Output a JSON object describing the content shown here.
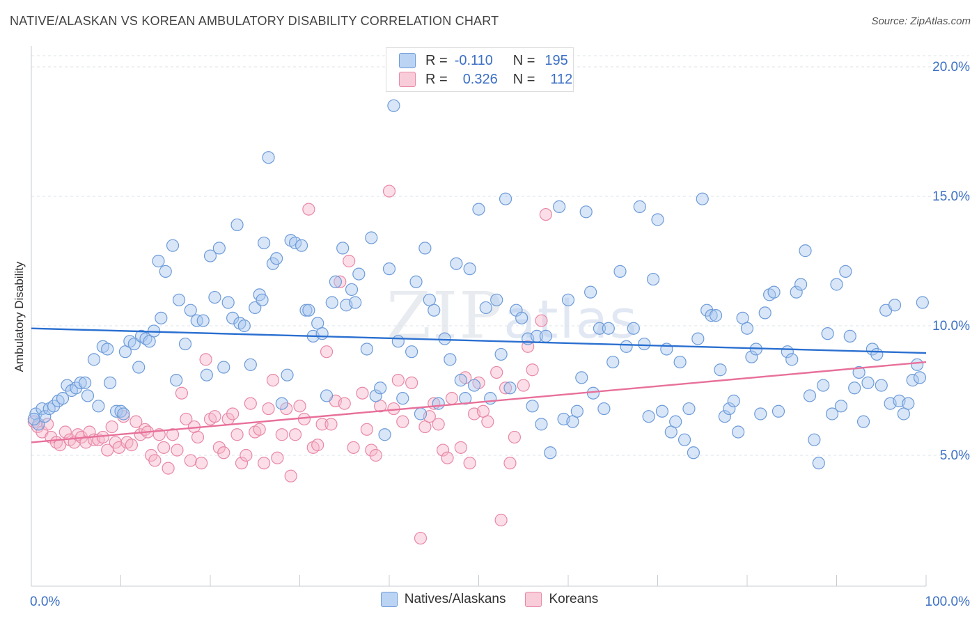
{
  "header": {
    "title": "NATIVE/ALASKAN VS KOREAN AMBULATORY DISABILITY CORRELATION CHART",
    "source": "Source: ZipAtlas.com"
  },
  "watermark": {
    "bold": "ZIP",
    "light": "atlas"
  },
  "legend_top": {
    "rows": [
      {
        "r_label": "R =",
        "r_value": "-0.110",
        "n_label": "N =",
        "n_value": "195"
      },
      {
        "r_label": "R =",
        "r_value": "0.326",
        "n_label": "N =",
        "n_value": "112"
      }
    ]
  },
  "legend_bottom": {
    "items": [
      "Natives/Alaskans",
      "Koreans"
    ]
  },
  "colors": {
    "blue_fill": "#a9c8f0",
    "blue_stroke": "#6d9bd8",
    "blue_line": "#2a6fd0",
    "pink_fill": "#f6b6c9",
    "pink_stroke": "#e888a6",
    "pink_line": "#e8709a",
    "tick_label": "#3b6fc4",
    "grid": "#dde3ea"
  },
  "chart_data": {
    "type": "scatter",
    "title": "NATIVE/ALASKAN VS KOREAN AMBULATORY DISABILITY CORRELATION CHART",
    "xlabel": "",
    "ylabel": "Ambulatory Disability",
    "xlim": [
      0,
      100
    ],
    "ylim": [
      0,
      20.5
    ],
    "x_tick_labels": [
      "0.0%",
      "100.0%"
    ],
    "y_ticks": [
      5,
      10,
      15,
      20
    ],
    "y_tick_labels": [
      "5.0%",
      "10.0%",
      "15.0%",
      "20.0%"
    ],
    "grid": true,
    "legend_position": "top-center",
    "series": [
      {
        "name": "Natives/Alaskans",
        "r": -0.11,
        "n": 195,
        "trend": {
          "x": [
            0,
            100
          ],
          "y": [
            9.9,
            8.95
          ]
        },
        "points": [
          [
            0.5,
            6.6
          ],
          [
            0.8,
            6.2
          ],
          [
            1.2,
            6.8
          ],
          [
            1.5,
            6.5
          ],
          [
            2.0,
            6.8
          ],
          [
            2.5,
            6.9
          ],
          [
            3.0,
            7.1
          ],
          [
            3.5,
            7.2
          ],
          [
            4.0,
            7.7
          ],
          [
            4.5,
            7.5
          ],
          [
            5.0,
            7.6
          ],
          [
            5.5,
            7.8
          ],
          [
            6.0,
            7.8
          ],
          [
            6.3,
            7.3
          ],
          [
            7.0,
            8.7
          ],
          [
            7.5,
            6.9
          ],
          [
            8.0,
            9.2
          ],
          [
            8.5,
            9.1
          ],
          [
            8.8,
            7.8
          ],
          [
            9.5,
            6.7
          ],
          [
            10.0,
            6.7
          ],
          [
            10.3,
            6.6
          ],
          [
            10.5,
            9.0
          ],
          [
            11.0,
            9.4
          ],
          [
            11.5,
            9.3
          ],
          [
            12.0,
            8.4
          ],
          [
            12.3,
            9.6
          ],
          [
            12.8,
            9.5
          ],
          [
            13.2,
            9.4
          ],
          [
            13.7,
            9.8
          ],
          [
            14.2,
            12.5
          ],
          [
            14.5,
            10.3
          ],
          [
            15.0,
            12.1
          ],
          [
            15.8,
            13.1
          ],
          [
            16.2,
            7.9
          ],
          [
            16.5,
            11.0
          ],
          [
            17.2,
            9.3
          ],
          [
            17.8,
            10.6
          ],
          [
            18.5,
            10.2
          ],
          [
            19.2,
            10.2
          ],
          [
            19.6,
            8.1
          ],
          [
            20.0,
            12.7
          ],
          [
            20.5,
            11.1
          ],
          [
            21.0,
            13.0
          ],
          [
            21.5,
            8.4
          ],
          [
            22.0,
            10.9
          ],
          [
            22.5,
            10.3
          ],
          [
            23.0,
            13.9
          ],
          [
            23.3,
            10.1
          ],
          [
            23.8,
            10.0
          ],
          [
            24.5,
            8.5
          ],
          [
            25.0,
            10.7
          ],
          [
            25.5,
            11.2
          ],
          [
            25.8,
            11.0
          ],
          [
            26.0,
            13.2
          ],
          [
            26.5,
            16.5
          ],
          [
            27.0,
            12.4
          ],
          [
            27.4,
            12.6
          ],
          [
            28.0,
            7.0
          ],
          [
            28.6,
            8.1
          ],
          [
            29.0,
            13.3
          ],
          [
            29.5,
            13.2
          ],
          [
            30.2,
            13.1
          ],
          [
            30.7,
            10.6
          ],
          [
            31.0,
            10.6
          ],
          [
            31.5,
            9.6
          ],
          [
            32.0,
            10.1
          ],
          [
            32.5,
            9.7
          ],
          [
            33.0,
            7.3
          ],
          [
            33.6,
            10.9
          ],
          [
            34.0,
            11.7
          ],
          [
            34.8,
            13.0
          ],
          [
            35.2,
            10.8
          ],
          [
            35.8,
            11.4
          ],
          [
            36.2,
            10.9
          ],
          [
            36.6,
            12.0
          ],
          [
            37.5,
            9.1
          ],
          [
            38.0,
            13.4
          ],
          [
            38.5,
            7.3
          ],
          [
            39.0,
            7.6
          ],
          [
            39.5,
            5.8
          ],
          [
            40.0,
            12.2
          ],
          [
            40.5,
            18.5
          ],
          [
            41.0,
            9.4
          ],
          [
            41.5,
            7.2
          ],
          [
            42.5,
            9.0
          ],
          [
            43.0,
            11.7
          ],
          [
            43.5,
            6.6
          ],
          [
            44.0,
            13.0
          ],
          [
            44.5,
            11.0
          ],
          [
            45.0,
            10.6
          ],
          [
            45.5,
            7.0
          ],
          [
            46.2,
            9.5
          ],
          [
            46.8,
            8.7
          ],
          [
            47.5,
            12.4
          ],
          [
            48.0,
            7.9
          ],
          [
            48.5,
            7.2
          ],
          [
            49.0,
            12.2
          ],
          [
            49.5,
            7.7
          ],
          [
            50.0,
            14.5
          ],
          [
            50.8,
            10.7
          ],
          [
            51.3,
            7.2
          ],
          [
            52.0,
            11.0
          ],
          [
            52.5,
            8.9
          ],
          [
            53.0,
            14.9
          ],
          [
            53.5,
            7.6
          ],
          [
            54.2,
            10.6
          ],
          [
            54.8,
            10.3
          ],
          [
            55.5,
            9.5
          ],
          [
            56.0,
            6.9
          ],
          [
            56.5,
            9.6
          ],
          [
            57.0,
            6.2
          ],
          [
            57.5,
            9.6
          ],
          [
            58.0,
            5.1
          ],
          [
            59.0,
            14.6
          ],
          [
            59.5,
            6.4
          ],
          [
            60.0,
            11.0
          ],
          [
            60.5,
            6.3
          ],
          [
            61.0,
            6.7
          ],
          [
            61.5,
            8.0
          ],
          [
            62.0,
            14.4
          ],
          [
            62.5,
            11.3
          ],
          [
            62.8,
            7.4
          ],
          [
            63.5,
            9.9
          ],
          [
            64.0,
            6.8
          ],
          [
            64.5,
            9.9
          ],
          [
            65.0,
            8.6
          ],
          [
            65.8,
            12.1
          ],
          [
            66.5,
            9.2
          ],
          [
            67.3,
            9.9
          ],
          [
            68.0,
            14.6
          ],
          [
            68.5,
            9.3
          ],
          [
            69.0,
            6.5
          ],
          [
            69.5,
            11.8
          ],
          [
            70.0,
            14.1
          ],
          [
            70.5,
            6.7
          ],
          [
            71.0,
            9.1
          ],
          [
            71.5,
            5.9
          ],
          [
            72.0,
            6.3
          ],
          [
            72.5,
            8.6
          ],
          [
            73.0,
            5.6
          ],
          [
            73.5,
            6.8
          ],
          [
            74.0,
            5.1
          ],
          [
            74.5,
            9.5
          ],
          [
            75.0,
            14.9
          ],
          [
            75.5,
            10.6
          ],
          [
            76.0,
            10.4
          ],
          [
            76.5,
            10.4
          ],
          [
            77.0,
            8.3
          ],
          [
            77.5,
            6.5
          ],
          [
            78.0,
            6.8
          ],
          [
            78.5,
            7.1
          ],
          [
            79.0,
            5.9
          ],
          [
            79.5,
            10.3
          ],
          [
            80.0,
            9.9
          ],
          [
            80.5,
            8.8
          ],
          [
            81.0,
            9.1
          ],
          [
            81.5,
            6.6
          ],
          [
            82.0,
            10.5
          ],
          [
            82.5,
            11.2
          ],
          [
            83.0,
            11.3
          ],
          [
            83.5,
            6.7
          ],
          [
            84.5,
            9.0
          ],
          [
            85.0,
            8.7
          ],
          [
            85.5,
            11.3
          ],
          [
            86.0,
            11.6
          ],
          [
            86.5,
            12.9
          ],
          [
            87.0,
            7.3
          ],
          [
            87.5,
            5.6
          ],
          [
            88.0,
            4.7
          ],
          [
            88.5,
            7.7
          ],
          [
            89.0,
            9.7
          ],
          [
            89.5,
            6.6
          ],
          [
            90.0,
            11.6
          ],
          [
            90.5,
            6.9
          ],
          [
            91.0,
            12.1
          ],
          [
            91.5,
            9.6
          ],
          [
            92.0,
            7.6
          ],
          [
            92.5,
            8.2
          ],
          [
            93.0,
            6.3
          ],
          [
            93.5,
            7.8
          ],
          [
            94.0,
            9.1
          ],
          [
            94.5,
            8.9
          ],
          [
            95.0,
            7.7
          ],
          [
            95.5,
            10.6
          ],
          [
            96.0,
            7.0
          ],
          [
            96.5,
            10.8
          ],
          [
            97.0,
            7.1
          ],
          [
            97.5,
            6.6
          ],
          [
            98.0,
            7.0
          ],
          [
            98.5,
            7.9
          ],
          [
            99.0,
            8.5
          ],
          [
            99.3,
            8.0
          ],
          [
            99.6,
            10.9
          ],
          [
            0.3,
            6.4
          ]
        ]
      },
      {
        "name": "Koreans",
        "r": 0.326,
        "n": 112,
        "trend": {
          "x": [
            0,
            100
          ],
          "y": [
            5.5,
            8.6
          ]
        },
        "points": [
          [
            0.3,
            6.3
          ],
          [
            0.7,
            6.1
          ],
          [
            1.2,
            5.9
          ],
          [
            1.8,
            6.2
          ],
          [
            2.2,
            5.7
          ],
          [
            2.8,
            5.5
          ],
          [
            3.2,
            5.4
          ],
          [
            3.8,
            5.9
          ],
          [
            4.3,
            5.6
          ],
          [
            4.8,
            5.5
          ],
          [
            5.2,
            5.8
          ],
          [
            5.6,
            5.7
          ],
          [
            6.1,
            5.5
          ],
          [
            6.5,
            5.9
          ],
          [
            7.0,
            5.6
          ],
          [
            7.5,
            5.6
          ],
          [
            8.0,
            5.7
          ],
          [
            8.5,
            5.2
          ],
          [
            9.0,
            6.1
          ],
          [
            9.4,
            5.5
          ],
          [
            9.8,
            5.3
          ],
          [
            10.3,
            6.5
          ],
          [
            10.7,
            5.5
          ],
          [
            11.2,
            5.4
          ],
          [
            11.7,
            6.3
          ],
          [
            12.2,
            5.8
          ],
          [
            12.7,
            6.0
          ],
          [
            13.0,
            5.9
          ],
          [
            13.4,
            5.0
          ],
          [
            13.8,
            4.8
          ],
          [
            14.3,
            5.8
          ],
          [
            14.8,
            5.3
          ],
          [
            15.3,
            4.5
          ],
          [
            15.8,
            5.8
          ],
          [
            16.3,
            5.2
          ],
          [
            16.8,
            7.4
          ],
          [
            17.3,
            6.4
          ],
          [
            17.8,
            4.8
          ],
          [
            18.2,
            6.1
          ],
          [
            18.6,
            5.7
          ],
          [
            19.0,
            4.7
          ],
          [
            19.5,
            8.7
          ],
          [
            20.0,
            6.4
          ],
          [
            20.5,
            6.5
          ],
          [
            21.0,
            5.3
          ],
          [
            21.5,
            5.1
          ],
          [
            22.0,
            6.4
          ],
          [
            22.5,
            6.6
          ],
          [
            23.0,
            5.8
          ],
          [
            23.5,
            4.7
          ],
          [
            24.0,
            5.0
          ],
          [
            24.5,
            7.0
          ],
          [
            25.0,
            5.9
          ],
          [
            25.5,
            6.0
          ],
          [
            26.0,
            4.7
          ],
          [
            26.5,
            6.8
          ],
          [
            27.0,
            7.9
          ],
          [
            27.5,
            4.9
          ],
          [
            28.0,
            5.8
          ],
          [
            28.5,
            6.8
          ],
          [
            29.0,
            4.2
          ],
          [
            29.5,
            5.8
          ],
          [
            30.0,
            6.9
          ],
          [
            30.5,
            6.4
          ],
          [
            31.0,
            14.5
          ],
          [
            31.5,
            5.3
          ],
          [
            32.0,
            5.4
          ],
          [
            32.5,
            6.2
          ],
          [
            33.0,
            9.0
          ],
          [
            33.5,
            6.2
          ],
          [
            34.0,
            7.1
          ],
          [
            34.5,
            11.7
          ],
          [
            35.0,
            7.0
          ],
          [
            35.5,
            12.5
          ],
          [
            36.0,
            5.3
          ],
          [
            37.0,
            7.4
          ],
          [
            37.5,
            6.0
          ],
          [
            38.0,
            5.2
          ],
          [
            38.5,
            5.0
          ],
          [
            39.0,
            6.9
          ],
          [
            40.0,
            15.2
          ],
          [
            40.5,
            6.8
          ],
          [
            41.0,
            7.9
          ],
          [
            41.5,
            6.3
          ],
          [
            42.5,
            7.8
          ],
          [
            43.5,
            1.8
          ],
          [
            44.0,
            6.1
          ],
          [
            44.5,
            6.5
          ],
          [
            45.0,
            7.0
          ],
          [
            45.5,
            6.2
          ],
          [
            46.0,
            5.2
          ],
          [
            46.5,
            4.9
          ],
          [
            47.0,
            7.2
          ],
          [
            48.0,
            5.3
          ],
          [
            48.5,
            8.0
          ],
          [
            49.0,
            4.7
          ],
          [
            49.5,
            6.6
          ],
          [
            50.0,
            7.8
          ],
          [
            50.5,
            6.7
          ],
          [
            51.0,
            6.3
          ],
          [
            52.0,
            8.2
          ],
          [
            52.5,
            2.5
          ],
          [
            53.0,
            7.6
          ],
          [
            53.5,
            4.7
          ],
          [
            54.0,
            5.7
          ],
          [
            55.0,
            7.7
          ],
          [
            55.5,
            9.2
          ],
          [
            56.0,
            8.3
          ],
          [
            57.0,
            10.2
          ],
          [
            57.5,
            14.3
          ]
        ]
      }
    ]
  }
}
